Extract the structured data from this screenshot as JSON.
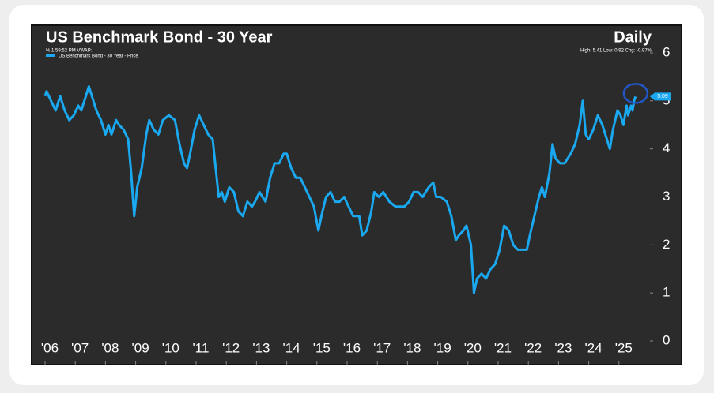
{
  "chart_data": {
    "type": "line",
    "title": "US Benchmark Bond - 30 Year",
    "frequency": "Daily",
    "subtitle": "% 1:59:52 PM VWAP:",
    "stats": "High: 5.41 Low: 0.92 Chg: -0.97%",
    "last_price": 5.09,
    "x": [
      2006.0,
      2006.05,
      2006.2,
      2006.35,
      2006.5,
      2006.65,
      2006.8,
      2006.95,
      2007.1,
      2007.2,
      2007.3,
      2007.45,
      2007.55,
      2007.7,
      2007.85,
      2008.0,
      2008.1,
      2008.2,
      2008.35,
      2008.45,
      2008.6,
      2008.75,
      2008.85,
      2008.95,
      2009.05,
      2009.2,
      2009.35,
      2009.45,
      2009.6,
      2009.75,
      2009.9,
      2010.1,
      2010.3,
      2010.45,
      2010.6,
      2010.7,
      2010.8,
      2010.95,
      2011.1,
      2011.25,
      2011.4,
      2011.55,
      2011.65,
      2011.75,
      2011.85,
      2011.95,
      2012.1,
      2012.25,
      2012.4,
      2012.55,
      2012.7,
      2012.85,
      2012.95,
      2013.1,
      2013.3,
      2013.45,
      2013.6,
      2013.75,
      2013.9,
      2014.0,
      2014.15,
      2014.3,
      2014.45,
      2014.6,
      2014.75,
      2014.9,
      2015.05,
      2015.15,
      2015.3,
      2015.45,
      2015.6,
      2015.75,
      2015.9,
      2016.05,
      2016.2,
      2016.4,
      2016.5,
      2016.65,
      2016.8,
      2016.9,
      2017.05,
      2017.2,
      2017.4,
      2017.6,
      2017.75,
      2017.9,
      2018.05,
      2018.2,
      2018.35,
      2018.5,
      2018.7,
      2018.85,
      2018.95,
      2019.1,
      2019.3,
      2019.45,
      2019.6,
      2019.7,
      2019.85,
      2019.95,
      2020.1,
      2020.2,
      2020.3,
      2020.45,
      2020.6,
      2020.75,
      2020.9,
      2021.05,
      2021.2,
      2021.35,
      2021.5,
      2021.65,
      2021.8,
      2021.95,
      2022.05,
      2022.2,
      2022.35,
      2022.45,
      2022.55,
      2022.7,
      2022.8,
      2022.9,
      2023.05,
      2023.2,
      2023.4,
      2023.55,
      2023.7,
      2023.8,
      2023.9,
      2024.0,
      2024.15,
      2024.3,
      2024.45,
      2024.6,
      2024.7,
      2024.8,
      2024.95,
      2025.05,
      2025.15,
      2025.25,
      2025.3,
      2025.4,
      2025.45,
      2025.5,
      2025.55
    ],
    "series": [
      {
        "name": "US Benchmark Bond - 30 Year - Price",
        "color": "#1aa8f0",
        "values": [
          5.1,
          5.2,
          5.0,
          4.8,
          5.1,
          4.8,
          4.6,
          4.7,
          4.9,
          4.8,
          5.0,
          5.3,
          5.1,
          4.8,
          4.6,
          4.3,
          4.5,
          4.3,
          4.6,
          4.5,
          4.4,
          4.2,
          3.5,
          2.6,
          3.2,
          3.6,
          4.3,
          4.6,
          4.4,
          4.3,
          4.6,
          4.7,
          4.6,
          4.1,
          3.7,
          3.6,
          3.9,
          4.4,
          4.7,
          4.5,
          4.3,
          4.2,
          3.6,
          3.0,
          3.1,
          2.9,
          3.2,
          3.1,
          2.7,
          2.6,
          2.9,
          2.8,
          2.9,
          3.1,
          2.9,
          3.4,
          3.7,
          3.7,
          3.9,
          3.9,
          3.6,
          3.4,
          3.4,
          3.2,
          3.0,
          2.8,
          2.3,
          2.6,
          3.0,
          3.1,
          2.9,
          2.9,
          3.0,
          2.8,
          2.6,
          2.6,
          2.2,
          2.3,
          2.7,
          3.1,
          3.0,
          3.1,
          2.9,
          2.8,
          2.8,
          2.8,
          2.9,
          3.1,
          3.1,
          3.0,
          3.2,
          3.3,
          3.0,
          3.0,
          2.9,
          2.6,
          2.1,
          2.2,
          2.3,
          2.4,
          2.0,
          1.0,
          1.3,
          1.4,
          1.3,
          1.5,
          1.6,
          1.9,
          2.4,
          2.3,
          2.0,
          1.9,
          1.9,
          1.9,
          2.2,
          2.6,
          3.0,
          3.2,
          3.0,
          3.5,
          4.1,
          3.8,
          3.7,
          3.7,
          3.9,
          4.1,
          4.5,
          5.0,
          4.3,
          4.2,
          4.4,
          4.7,
          4.5,
          4.2,
          4.0,
          4.4,
          4.8,
          4.7,
          4.5,
          4.9,
          4.7,
          4.9,
          4.8,
          5.0,
          5.09
        ]
      }
    ],
    "xlim": [
      2006,
      2026
    ],
    "xticks": [
      {
        "value": 2006,
        "label": "'06"
      },
      {
        "value": 2007,
        "label": "'07"
      },
      {
        "value": 2008,
        "label": "'08"
      },
      {
        "value": 2009,
        "label": "'09"
      },
      {
        "value": 2010,
        "label": "'10"
      },
      {
        "value": 2011,
        "label": "'11"
      },
      {
        "value": 2012,
        "label": "'12"
      },
      {
        "value": 2013,
        "label": "'13"
      },
      {
        "value": 2014,
        "label": "'14"
      },
      {
        "value": 2015,
        "label": "'15"
      },
      {
        "value": 2016,
        "label": "'16"
      },
      {
        "value": 2017,
        "label": "'17"
      },
      {
        "value": 2018,
        "label": "'18"
      },
      {
        "value": 2019,
        "label": "'19"
      },
      {
        "value": 2020,
        "label": "'20"
      },
      {
        "value": 2021,
        "label": "'21"
      },
      {
        "value": 2022,
        "label": "'22"
      },
      {
        "value": 2023,
        "label": "'23"
      },
      {
        "value": 2024,
        "label": "'24"
      },
      {
        "value": 2025,
        "label": "'25"
      }
    ],
    "ylim": [
      0,
      6
    ],
    "yticks": [
      0,
      1,
      2,
      3,
      4,
      5,
      6
    ],
    "grid": false
  }
}
